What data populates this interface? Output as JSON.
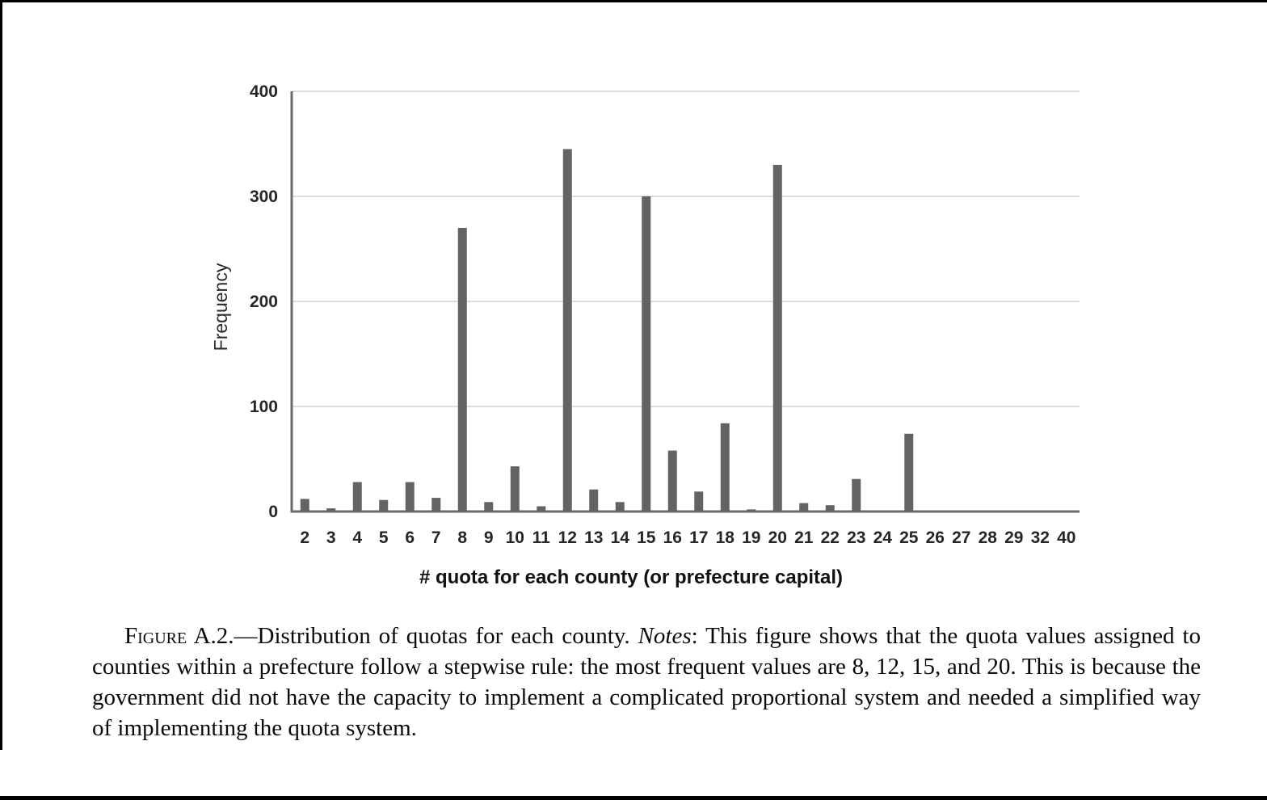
{
  "chart_data": {
    "type": "bar",
    "title": "",
    "xlabel": "# quota for each county (or prefecture capital)",
    "ylabel": "Frequency",
    "categories": [
      "2",
      "3",
      "4",
      "5",
      "6",
      "7",
      "8",
      "9",
      "10",
      "11",
      "12",
      "13",
      "14",
      "15",
      "16",
      "17",
      "18",
      "19",
      "20",
      "21",
      "22",
      "23",
      "24",
      "25",
      "26",
      "27",
      "28",
      "29",
      "32",
      "40"
    ],
    "values": [
      12,
      3,
      28,
      11,
      28,
      13,
      270,
      9,
      43,
      5,
      345,
      21,
      9,
      300,
      58,
      19,
      84,
      2,
      330,
      8,
      6,
      31,
      0,
      74,
      0,
      0,
      0,
      0,
      0,
      0
    ],
    "ylim": [
      0,
      400
    ],
    "yticks": [
      0,
      100,
      200,
      300,
      400
    ],
    "grid": true,
    "legend": "none",
    "bar_color": "#636363",
    "gridline_color": "#d0d0d0",
    "axis_color": "#6b6b6b"
  },
  "caption": {
    "figure_label": "Figure",
    "figure_number": " A.2.",
    "dash": "—",
    "text_before_notes": "Distribution of quotas for each county. ",
    "notes_label": "Notes",
    "text_after_notes": ": This figure shows that the quota values assigned to counties within a prefecture follow a stepwise rule: the most frequent values are 8, 12, 15, and 20. This is because the government did not have the capacity to implement a complicated proportional system and needed a simplified way of implementing the quota system."
  }
}
